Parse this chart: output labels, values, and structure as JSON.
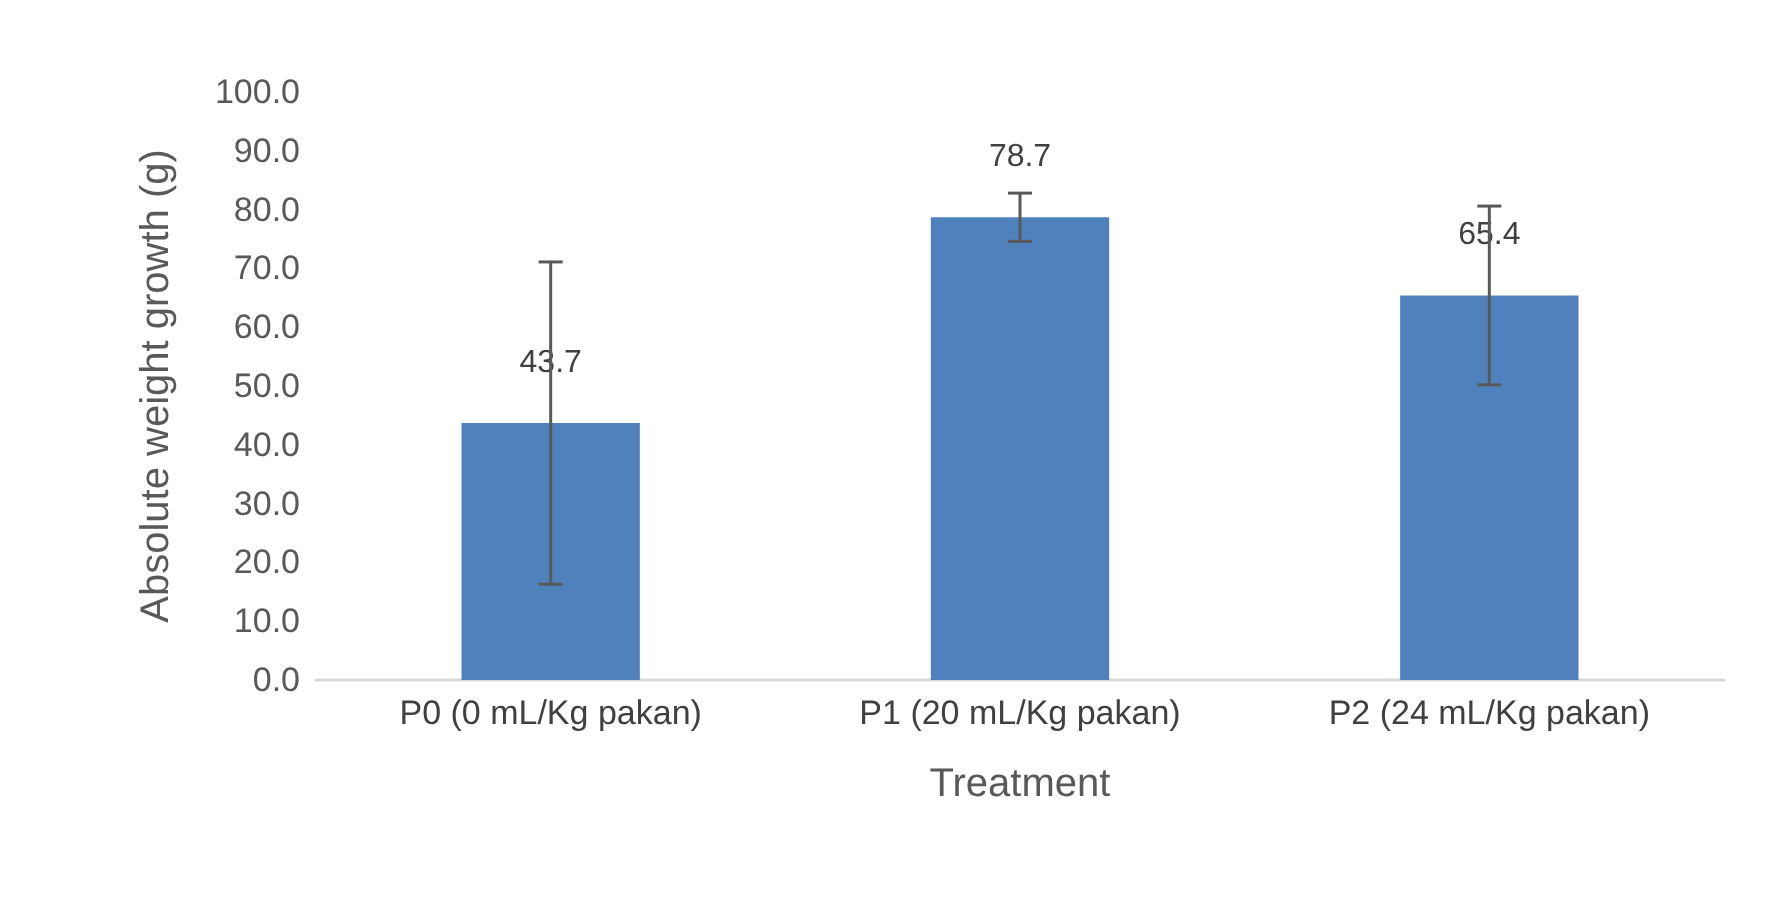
{
  "chart_data": {
    "type": "bar",
    "xlabel": "Treatment",
    "ylabel": "Absolute weight growth (g)",
    "categories": [
      "P0 (0 mL/Kg pakan)",
      "P1 (20 mL/Kg pakan)",
      "P2 (24 mL/Kg pakan)"
    ],
    "values": [
      43.7,
      78.7,
      65.4
    ],
    "errors": [
      27.4,
      4.1,
      15.2
    ],
    "color": "#4f81bd",
    "ylim": [
      0,
      100
    ],
    "yticks": [
      {
        "value": 0,
        "label": "0.0"
      },
      {
        "value": 10,
        "label": "10.0"
      },
      {
        "value": 20,
        "label": "20.0"
      },
      {
        "value": 30,
        "label": "30.0"
      },
      {
        "value": 40,
        "label": "40.0"
      },
      {
        "value": 50,
        "label": "50.0"
      },
      {
        "value": 60,
        "label": "60.0"
      },
      {
        "value": 70,
        "label": "70.0"
      },
      {
        "value": 80,
        "label": "80.0"
      },
      {
        "value": 90,
        "label": "90.0"
      },
      {
        "value": 100,
        "label": "100.0"
      }
    ],
    "data_labels": true,
    "grid": false
  }
}
